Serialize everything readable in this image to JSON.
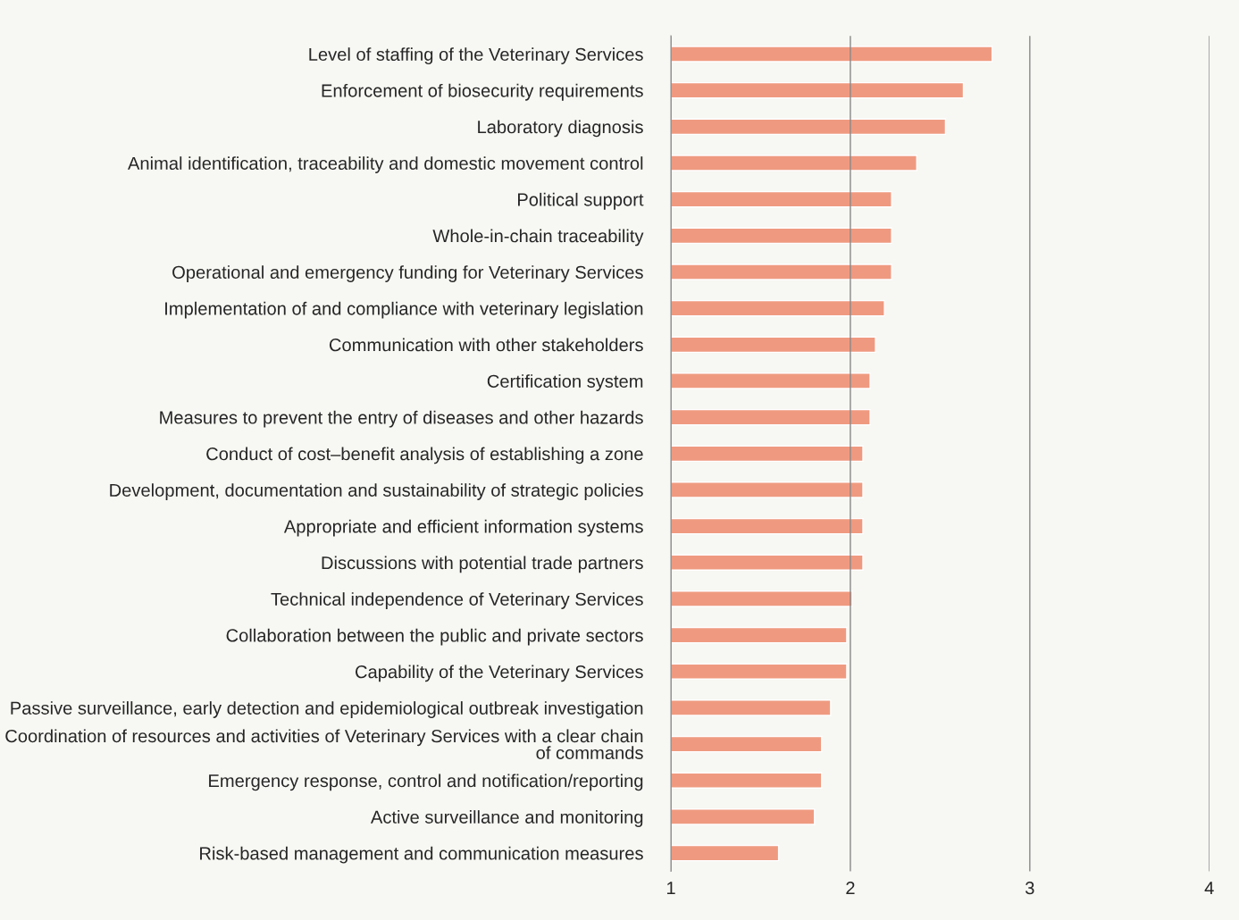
{
  "chart_data": {
    "type": "bar",
    "orientation": "horizontal",
    "categories": [
      "Level of staffing of the Veterinary Services",
      "Enforcement of biosecurity requirements",
      "Laboratory diagnosis",
      "Animal identification, traceability and domestic movement control",
      "Political support",
      "Whole-in-chain traceability",
      "Operational and emergency funding for Veterinary Services",
      "Implementation of and compliance with veterinary legislation",
      "Communication with other stakeholders",
      "Certification system",
      "Measures to prevent the entry of diseases and other hazards",
      "Conduct of cost–benefit analysis of establishing a zone",
      "Development, documentation and sustainability of strategic policies",
      "Appropriate and efficient information systems",
      "Discussions with potential trade partners",
      "Technical independence of Veterinary Services",
      "Collaboration between the public and private sectors",
      "Capability of the Veterinary Services",
      "Passive surveillance, early detection and epidemiological outbreak investigation",
      "Coordination of resources and activities of Veterinary Services with a clear chain\nof commands",
      "Emergency response, control and notification/reporting",
      "Active surveillance and monitoring",
      "Risk-based management and communication measures"
    ],
    "values": [
      2.79,
      2.63,
      2.53,
      2.37,
      2.23,
      2.23,
      2.23,
      2.19,
      2.14,
      2.11,
      2.11,
      2.07,
      2.07,
      2.07,
      2.07,
      2.01,
      1.98,
      1.98,
      1.89,
      1.84,
      1.84,
      1.8,
      1.6
    ],
    "color": "#ef9a80",
    "xlim": [
      1,
      4
    ],
    "xticks": [
      1,
      2,
      3,
      4
    ],
    "grid": "x"
  }
}
